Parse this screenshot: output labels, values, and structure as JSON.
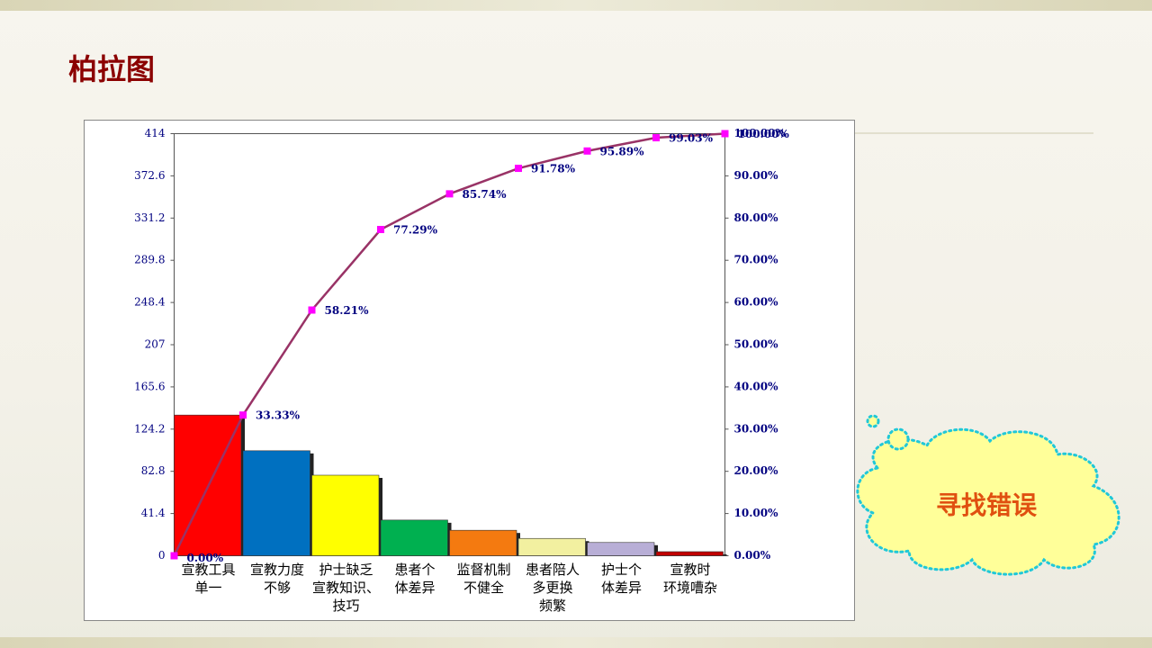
{
  "slide": {
    "title": "柏拉图",
    "callout": "寻找错误"
  },
  "chart_data": {
    "type": "pareto",
    "categories": [
      "宣教工具\n单一",
      "宣教力度\n不够",
      "护士缺乏\n宣教知识、\n技巧",
      "患者个\n体差异",
      "监督机制\n不健全",
      "患者陪人\n多更换\n频繁",
      "护士个\n体差异",
      "宣教时\n环境嘈杂"
    ],
    "values": [
      138,
      103,
      79,
      35,
      25,
      17,
      13,
      4
    ],
    "colors": [
      "#ff0000",
      "#0070c0",
      "#ffff00",
      "#00b050",
      "#f47a10",
      "#f2f0a0",
      "#b8aed6",
      "#c00000"
    ],
    "cumulative": {
      "axis": "y2",
      "color": "#993366",
      "marker_color": "#ff00ff",
      "values": [
        0,
        33.33,
        58.21,
        77.29,
        85.74,
        91.78,
        95.89,
        99.03,
        100
      ],
      "value_labels": [
        "0.00%",
        "33.33%",
        "58.21%",
        "77.29%",
        "85.74%",
        "91.78%",
        "95.89%",
        "99.03%",
        "100.00%"
      ]
    },
    "ylim": [
      0,
      414
    ],
    "yticks": [
      0,
      41.4,
      82.8,
      124.2,
      165.6,
      207,
      248.4,
      289.8,
      331.2,
      372.6,
      414
    ],
    "y2lim": [
      0,
      100
    ],
    "y2ticks": [
      {
        "value": 0,
        "label": "0.00%"
      },
      {
        "value": 10,
        "label": "10.00%"
      },
      {
        "value": 20,
        "label": "20.00%"
      },
      {
        "value": 30,
        "label": "30.00%"
      },
      {
        "value": 40,
        "label": "40.00%"
      },
      {
        "value": 50,
        "label": "50.00%"
      },
      {
        "value": 60,
        "label": "60.00%"
      },
      {
        "value": 70,
        "label": "70.00%"
      },
      {
        "value": 80,
        "label": "80.00%"
      },
      {
        "value": 90,
        "label": "90.00%"
      },
      {
        "value": 100,
        "label": "100.00%"
      }
    ]
  }
}
